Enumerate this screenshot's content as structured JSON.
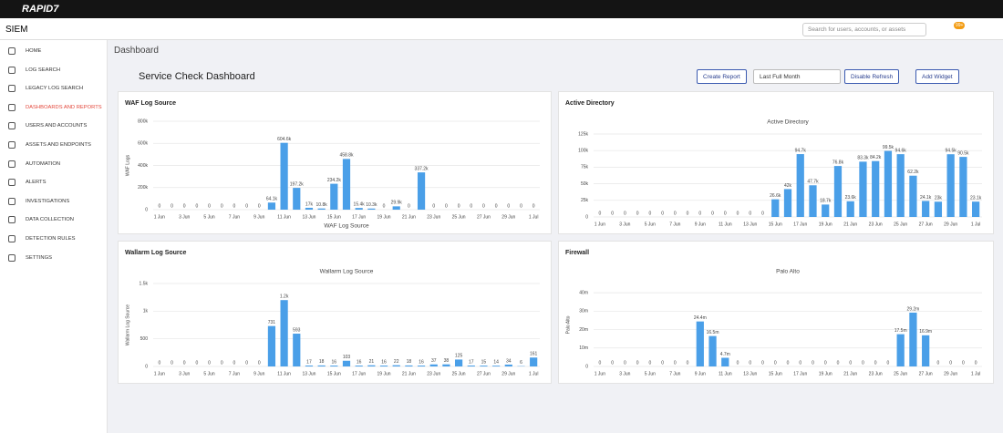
{
  "brand": "RAPID7",
  "app": "SIEM",
  "search_placeholder": "Search for users, accounts, or assets",
  "notification_badge": "99+",
  "nav": [
    "HOME",
    "LOG SEARCH",
    "LEGACY LOG SEARCH",
    "DASHBOARDS AND REPORTS",
    "USERS AND ACCOUNTS",
    "ASSETS AND ENDPOINTS",
    "AUTOMATION",
    "ALERTS",
    "INVESTIGATIONS",
    "DATA COLLECTION",
    "DETECTION RULES",
    "SETTINGS"
  ],
  "nav_active": 3,
  "breadcrumb": "Dashboard",
  "dashboard_title": "Service Check Dashboard",
  "toolbar": [
    "Create Report",
    "Last Full Month",
    "Disable Refresh",
    "Add Widget"
  ],
  "widgets": [
    {
      "title": "WAF Log Source",
      "chart_data": {
        "type": "bar",
        "x_label": "WAF Log Source",
        "y_label": "WAF Logs",
        "color": "#4a9fe8",
        "categories": [
          "1 Jun",
          null,
          "3 Jun",
          null,
          "5 Jun",
          null,
          "7 Jun",
          null,
          "9 Jun",
          null,
          "11 Jun",
          null,
          "13 Jun",
          null,
          "15 Jun",
          null,
          "17 Jun",
          null,
          "19 Jun",
          null,
          "21 Jun",
          null,
          "23 Jun",
          null,
          "25 Jun",
          null,
          "27 Jun",
          null,
          "29 Jun",
          null,
          "1 Jul"
        ],
        "values": [
          0,
          0,
          0,
          0,
          0,
          0,
          0,
          0,
          0,
          64100,
          604600,
          197200,
          17000,
          10800,
          234200,
          458800,
          15400,
          10300,
          0,
          29900,
          0,
          337200,
          0,
          0,
          0,
          0,
          0,
          0,
          0,
          0,
          0
        ],
        "value_labels": [
          "0",
          "0",
          "0",
          "0",
          "0",
          "0",
          "0",
          "0",
          "0",
          "64.1k",
          "604.6k",
          "197.2k",
          "17k",
          "10.8k",
          "234.2k",
          "458.8k",
          "15.4k",
          "10.3k",
          "0",
          "29.9k",
          "0",
          "337.2k",
          "0",
          "0",
          "0",
          "0",
          "0",
          "0",
          "0",
          "0",
          "0"
        ],
        "ylim": [
          0,
          800000
        ],
        "yticks": [
          0,
          {
            "value": 200000,
            "label": "200k"
          },
          {
            "value": 400000,
            "label": "400k"
          },
          {
            "value": 600000,
            "label": "600k"
          },
          {
            "value": 800000,
            "label": "800k"
          }
        ],
        "grid": true
      }
    },
    {
      "title": "Active Directory",
      "chart_data": {
        "type": "bar",
        "subtitle": "Active Directory",
        "color": "#4a9fe8",
        "categories": [
          "1 Jun",
          null,
          "3 Jun",
          null,
          "5 Jun",
          null,
          "7 Jun",
          null,
          "9 Jun",
          null,
          "11 Jun",
          null,
          "13 Jun",
          null,
          "15 Jun",
          null,
          "17 Jun",
          null,
          "19 Jun",
          null,
          "21 Jun",
          null,
          "23 Jun",
          null,
          "25 Jun",
          null,
          "27 Jun",
          null,
          "29 Jun",
          null,
          "1 Jul"
        ],
        "values": [
          0,
          0,
          0,
          0,
          0,
          0,
          0,
          0,
          0,
          0,
          0,
          0,
          0,
          0,
          26600,
          42000,
          94700,
          47700,
          18700,
          76800,
          23600,
          83300,
          84200,
          99500,
          94600,
          62200,
          24100,
          23000,
          94500,
          90500,
          23100
        ],
        "value_labels": [
          "0",
          "0",
          "0",
          "0",
          "0",
          "0",
          "0",
          "0",
          "0",
          "0",
          "0",
          "0",
          "0",
          "0",
          "26.6k",
          "42k",
          "94.7k",
          "47.7k",
          "18.7k",
          "76.8k",
          "23.6k",
          "83.3k",
          "84.2k",
          "99.5k",
          "94.6k",
          "62.2k",
          "24.1k",
          "23k",
          "94.5k",
          "90.5k",
          "23.1k"
        ],
        "ylim": [
          0,
          125000
        ],
        "yticks": [
          0,
          {
            "value": 25000,
            "label": "25k"
          },
          {
            "value": 50000,
            "label": "50k"
          },
          {
            "value": 75000,
            "label": "75k"
          },
          {
            "value": 100000,
            "label": "100k"
          },
          {
            "value": 125000,
            "label": "125k"
          }
        ],
        "grid": true
      }
    },
    {
      "title": "Wallarm Log Source",
      "chart_data": {
        "type": "bar",
        "subtitle": "Wallarm Log Source",
        "y_label": "Wallarm Log Source",
        "color": "#4a9fe8",
        "categories": [
          "1 Jun",
          null,
          "3 Jun",
          null,
          "5 Jun",
          null,
          "7 Jun",
          null,
          "9 Jun",
          null,
          "11 Jun",
          null,
          "13 Jun",
          null,
          "15 Jun",
          null,
          "17 Jun",
          null,
          "19 Jun",
          null,
          "21 Jun",
          null,
          "23 Jun",
          null,
          "25 Jun",
          null,
          "27 Jun",
          null,
          "29 Jun",
          null,
          "1 Jul"
        ],
        "values": [
          0,
          0,
          0,
          0,
          0,
          0,
          0,
          0,
          0,
          731,
          1200,
          593,
          17,
          18,
          16,
          103,
          16,
          21,
          16,
          22,
          18,
          16,
          37,
          38,
          125,
          17,
          15,
          14,
          34,
          6,
          161
        ],
        "value_labels": [
          "0",
          "0",
          "0",
          "0",
          "0",
          "0",
          "0",
          "0",
          "0",
          "731",
          "1.2k",
          "593",
          "17",
          "18",
          "16",
          "103",
          "16",
          "21",
          "16",
          "22",
          "18",
          "16",
          "37",
          "38",
          "125",
          "17",
          "15",
          "14",
          "34",
          "6",
          "161"
        ],
        "ylim": [
          0,
          1500
        ],
        "yticks": [
          0,
          500,
          {
            "value": 1000,
            "label": "1k"
          },
          {
            "value": 1500,
            "label": "1.5k"
          }
        ],
        "grid": true
      }
    },
    {
      "title": "Firewall",
      "chart_data": {
        "type": "bar",
        "subtitle": "Palo Alto",
        "y_label": "Palo Alto",
        "color": "#4a9fe8",
        "categories": [
          "1 Jun",
          null,
          "3 Jun",
          null,
          "5 Jun",
          null,
          "7 Jun",
          null,
          "9 Jun",
          null,
          "11 Jun",
          null,
          "13 Jun",
          null,
          "15 Jun",
          null,
          "17 Jun",
          null,
          "19 Jun",
          null,
          "21 Jun",
          null,
          "23 Jun",
          null,
          "25 Jun",
          null,
          "27 Jun",
          null,
          "29 Jun",
          null,
          "1 Jul"
        ],
        "values": [
          0,
          0,
          0,
          0,
          0,
          0,
          0,
          0,
          24400000,
          16500000,
          4700000,
          0,
          0,
          0,
          0,
          0,
          0,
          0,
          0,
          0,
          0,
          0,
          0,
          0,
          17500000,
          29200000,
          16900000,
          0,
          0,
          0,
          0
        ],
        "value_labels": [
          "0",
          "0",
          "0",
          "0",
          "0",
          "0",
          "0",
          "0",
          "24.4m",
          "16.5m",
          "4.7m",
          "0",
          "0",
          "0",
          "0",
          "0",
          "0",
          "0",
          "0",
          "0",
          "0",
          "0",
          "0",
          "0",
          "17.5m",
          "29.2m",
          "16.9m",
          "0",
          "0",
          "0",
          "0"
        ],
        "ylim": [
          0,
          45000000
        ],
        "yticks": [
          0,
          {
            "value": 10000000,
            "label": "10m"
          },
          {
            "value": 20000000,
            "label": "20m"
          },
          {
            "value": 30000000,
            "label": "30m"
          },
          {
            "value": 40000000,
            "label": "40m"
          }
        ],
        "grid": true
      }
    }
  ]
}
